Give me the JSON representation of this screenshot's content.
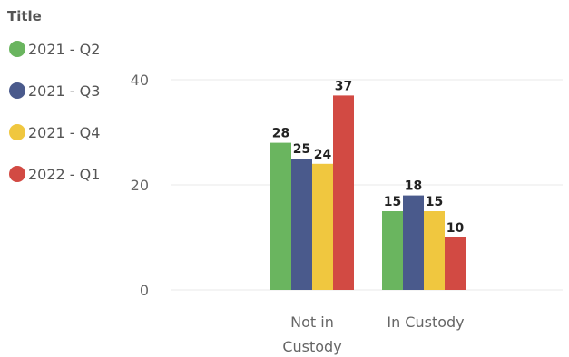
{
  "chart_data": {
    "type": "bar",
    "legend_title": "Title",
    "legend_position": "left",
    "categories": [
      "Not in Custody",
      "In Custody"
    ],
    "series": [
      {
        "name": "2021 - Q2",
        "color": "#6ab55f",
        "values": [
          28,
          15
        ]
      },
      {
        "name": "2021 - Q3",
        "color": "#4a5a8c",
        "values": [
          25,
          18
        ]
      },
      {
        "name": "2021 - Q4",
        "color": "#f0c73f",
        "values": [
          24,
          15
        ]
      },
      {
        "name": "2022 - Q1",
        "color": "#d24a43",
        "values": [
          37,
          10
        ]
      }
    ],
    "y_ticks": [
      "0",
      "20",
      "40"
    ],
    "ylim": [
      0,
      40
    ],
    "grid": true
  }
}
